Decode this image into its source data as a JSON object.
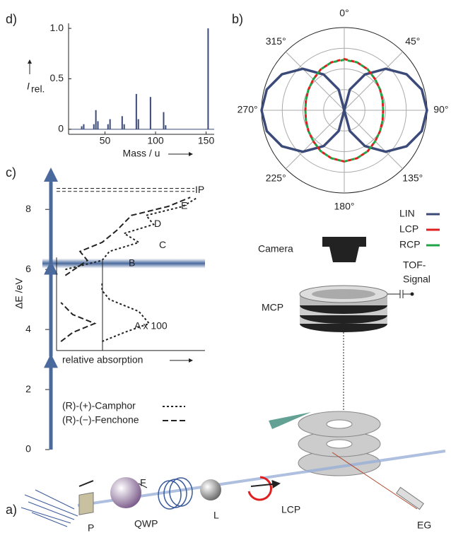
{
  "panel_d": {
    "label": "d)",
    "type": "stick",
    "x_label": "Mass / u",
    "y_label": "I",
    "y_label_sub": "rel.",
    "color": "#3b4a78",
    "x": [
      27,
      29,
      39,
      41,
      43,
      53,
      55,
      67,
      69,
      81,
      83,
      95,
      108,
      110,
      152
    ],
    "values": [
      0.03,
      0.05,
      0.05,
      0.19,
      0.08,
      0.05,
      0.1,
      0.13,
      0.05,
      0.35,
      0.1,
      0.32,
      0.17,
      0.04,
      1.0
    ],
    "xlim": [
      14,
      158
    ],
    "xticks": [
      50,
      100,
      150
    ],
    "ylim": [
      -0.05,
      1.05
    ],
    "yticks": [
      0,
      0.5,
      {
        "value": 1,
        "label": "1.0"
      }
    ]
  },
  "panel_b": {
    "label": "b)",
    "type": "polar",
    "angle_ticks": [
      {
        "value": 0,
        "label": "0°"
      },
      {
        "value": 45,
        "label": "45°"
      },
      {
        "value": 90,
        "label": "90°"
      },
      {
        "value": 135,
        "label": "135°"
      },
      {
        "value": 180,
        "label": "180°"
      },
      {
        "value": 225,
        "label": "225°"
      },
      {
        "value": 270,
        "label": "270°"
      },
      {
        "value": 315,
        "label": "315°"
      }
    ],
    "rlim": [
      0,
      1
    ],
    "rticks": [
      0.25,
      0.5,
      0.75,
      1
    ],
    "angles": [
      0,
      15,
      30,
      45,
      60,
      75,
      90,
      105,
      120,
      135,
      150,
      165,
      180,
      195,
      210,
      225,
      240,
      255,
      270,
      285,
      300,
      315,
      330,
      345
    ],
    "series": [
      {
        "name": "LIN",
        "color": "#3b4a78",
        "values": [
          0,
          0.26,
          0.5,
          0.71,
          0.87,
          0.97,
          1,
          0.97,
          0.87,
          0.71,
          0.5,
          0.26,
          0,
          0.26,
          0.5,
          0.71,
          0.87,
          0.97,
          1,
          0.97,
          0.87,
          0.71,
          0.5,
          0.26
        ]
      },
      {
        "name": "LCP",
        "color": "#e02020",
        "values": [
          0.62,
          0.6,
          0.57,
          0.53,
          0.5,
          0.48,
          0.47,
          0.48,
          0.5,
          0.53,
          0.57,
          0.6,
          0.62,
          0.6,
          0.57,
          0.53,
          0.5,
          0.48,
          0.47,
          0.48,
          0.5,
          0.53,
          0.57,
          0.6
        ]
      },
      {
        "name": "RCP",
        "color": "#1fa548",
        "values": [
          0.61,
          0.6,
          0.57,
          0.53,
          0.5,
          0.48,
          0.47,
          0.48,
          0.5,
          0.53,
          0.57,
          0.6,
          0.62,
          0.6,
          0.57,
          0.53,
          0.5,
          0.48,
          0.47,
          0.48,
          0.5,
          0.53,
          0.57,
          0.6
        ]
      }
    ]
  },
  "panel_c": {
    "label": "c)",
    "type": "energy-diagram",
    "y_label": "ΔE /eV",
    "ylim": [
      0,
      9.3
    ],
    "yticks": [
      0,
      2,
      4,
      6,
      8
    ],
    "photon_levels": [
      3.1,
      6.2,
      9.3
    ],
    "resonance_band": 6.2,
    "ip": {
      "label": "IP",
      "values": [
        8.7,
        8.6
      ]
    },
    "states": {
      "labels": [
        "A  x 100",
        "B",
        "C",
        "D",
        "E"
      ],
      "values": [
        4.1,
        6.2,
        6.8,
        7.5,
        8.1
      ]
    },
    "x_label": "relative absorption",
    "xlim": [
      0,
      1
    ],
    "series": [
      {
        "name": "(R)-(+)-Camphor",
        "x": [
          3.6,
          3.9,
          4.2,
          4.6,
          5.0,
          5.3,
          5.6,
          5.8,
          6.0,
          6.3,
          6.6,
          6.9,
          7.2,
          7.5,
          7.8,
          8.1,
          8.4
        ],
        "values": [
          0.3,
          0.45,
          0.62,
          0.55,
          0.35,
          0.3,
          0.3,
          null,
          0.05,
          0.3,
          0.35,
          0.55,
          0.45,
          0.65,
          0.6,
          0.85,
          0.95
        ]
      },
      {
        "name": "(R)-(−)-Fenchone",
        "x": [
          3.6,
          3.9,
          4.2,
          4.5,
          4.9,
          5.3,
          5.8,
          6.3,
          6.6,
          6.9,
          7.3,
          7.8,
          8.1,
          8.4
        ],
        "values": [
          0.02,
          0.1,
          0.25,
          0.1,
          0.02,
          null,
          0.05,
          0.2,
          0.15,
          0.3,
          0.4,
          0.5,
          0.75,
          0.9
        ]
      }
    ]
  },
  "panel_a": {
    "label": "a)",
    "parts": {
      "p": "P",
      "qwp": "QWP",
      "f": "F",
      "l": "L",
      "lcp": "LCP",
      "eg": "EG",
      "camera": "Camera",
      "tof_signal": [
        "TOF-",
        "Signal"
      ],
      "mcp": "MCP"
    }
  }
}
